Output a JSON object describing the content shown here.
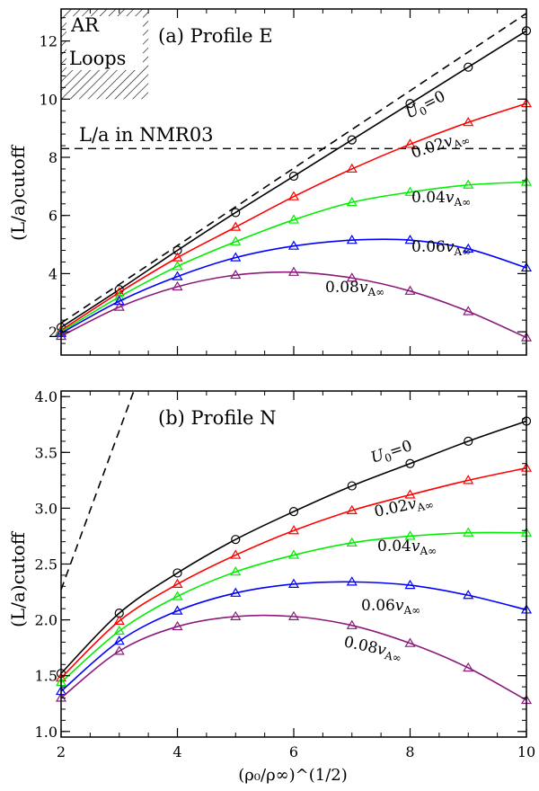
{
  "colors": {
    "black": "#000000",
    "red": "#ff0000",
    "green": "#00ee00",
    "blue": "#0000ff",
    "purple": "#8b1a7a"
  },
  "chart_data": [
    {
      "type": "line",
      "title": "(a) Profile E",
      "xlabel": "(ρ₀/ρ∞)^(1/2)",
      "ylabel": "(L/a)cutoff",
      "xlim": [
        2,
        10
      ],
      "ylim": [
        1.2,
        13.1
      ],
      "xticks": [
        "2",
        "4",
        "6",
        "8",
        "10"
      ],
      "yticks": [
        "2",
        "4",
        "6",
        "8",
        "10",
        "12"
      ],
      "x": [
        2,
        3,
        4,
        5,
        6,
        7,
        8,
        9,
        10
      ],
      "series": [
        {
          "name": "U₀=0",
          "label_main": "U",
          "label_sub": "0",
          "label_rest": "=0",
          "color": "#000000",
          "marker": "circle",
          "values": [
            2.15,
            3.45,
            4.8,
            6.1,
            7.35,
            8.6,
            9.85,
            11.1,
            12.35
          ]
        },
        {
          "name": "0.02vA∞",
          "label_main": "0.02",
          "label_v": "v",
          "label_sub": "A∞",
          "color": "#ff0000",
          "marker": "triangle",
          "values": [
            2.05,
            3.35,
            4.55,
            5.6,
            6.65,
            7.6,
            8.45,
            9.2,
            9.85
          ]
        },
        {
          "name": "0.04vA∞",
          "label_main": "0.04",
          "label_v": "v",
          "label_sub": "A∞",
          "color": "#00ee00",
          "marker": "triangle",
          "values": [
            2.0,
            3.2,
            4.25,
            5.1,
            5.85,
            6.45,
            6.8,
            7.05,
            7.15
          ]
        },
        {
          "name": "0.06vA∞",
          "label_main": "0.06",
          "label_v": "v",
          "label_sub": "A∞",
          "color": "#0000ff",
          "marker": "triangle",
          "values": [
            1.95,
            3.05,
            3.9,
            4.55,
            4.95,
            5.15,
            5.15,
            4.85,
            4.2
          ]
        },
        {
          "name": "0.08vA∞",
          "label_main": "0.08",
          "label_v": "v",
          "label_sub": "A∞",
          "color": "#8b1a7a",
          "marker": "triangle",
          "values": [
            1.85,
            2.85,
            3.55,
            3.95,
            4.05,
            3.85,
            3.4,
            2.7,
            1.8
          ]
        }
      ],
      "dashed_line": {
        "x": [
          2,
          10
        ],
        "y": [
          2.3,
          12.95
        ]
      },
      "reference_line": {
        "y": 8.3,
        "label": "L/a in NMR03"
      },
      "shaded_box": {
        "label_line1": "AR",
        "label_line2": "Loops",
        "x_range": [
          2,
          3.5
        ],
        "y_range": [
          10,
          13.1
        ]
      }
    },
    {
      "type": "line",
      "title": "(b) Profile N",
      "xlabel": "(ρ₀/ρ∞)^(1/2)",
      "ylabel": "(L/a)cutoff",
      "xlim": [
        2,
        10
      ],
      "ylim": [
        0.95,
        4.05
      ],
      "xticks": [
        "2",
        "4",
        "6",
        "8",
        "10"
      ],
      "yticks": [
        "1.0",
        "1.5",
        "2.0",
        "2.5",
        "3.0",
        "3.5",
        "4.0"
      ],
      "x": [
        2,
        3,
        4,
        5,
        6,
        7,
        8,
        9,
        10
      ],
      "series": [
        {
          "name": "U₀=0",
          "label_main": "U",
          "label_sub": "0",
          "label_rest": "=0",
          "color": "#000000",
          "marker": "circle",
          "values": [
            1.52,
            2.06,
            2.42,
            2.72,
            2.97,
            3.2,
            3.4,
            3.6,
            3.78
          ]
        },
        {
          "name": "0.02vA∞",
          "label_main": "0.02",
          "label_v": "v",
          "label_sub": "A∞",
          "color": "#ff0000",
          "marker": "triangle",
          "values": [
            1.48,
            1.99,
            2.32,
            2.58,
            2.8,
            2.98,
            3.12,
            3.25,
            3.36
          ]
        },
        {
          "name": "0.04vA∞",
          "label_main": "0.04",
          "label_v": "v",
          "label_sub": "A∞",
          "color": "#00ee00",
          "marker": "triangle",
          "values": [
            1.44,
            1.9,
            2.21,
            2.43,
            2.58,
            2.69,
            2.75,
            2.78,
            2.78
          ]
        },
        {
          "name": "0.06vA∞",
          "label_main": "0.06",
          "label_v": "v",
          "label_sub": "A∞",
          "color": "#0000ff",
          "marker": "triangle",
          "values": [
            1.36,
            1.81,
            2.08,
            2.24,
            2.32,
            2.34,
            2.31,
            2.22,
            2.09
          ]
        },
        {
          "name": "0.08vA∞",
          "label_main": "0.08",
          "label_v": "v",
          "label_sub": "A∞",
          "color": "#8b1a7a",
          "marker": "triangle",
          "values": [
            1.3,
            1.72,
            1.94,
            2.03,
            2.03,
            1.95,
            1.79,
            1.57,
            1.28
          ]
        }
      ],
      "dashed_line": {
        "x": [
          2,
          3.25
        ],
        "y": [
          2.27,
          4.05
        ]
      }
    }
  ]
}
